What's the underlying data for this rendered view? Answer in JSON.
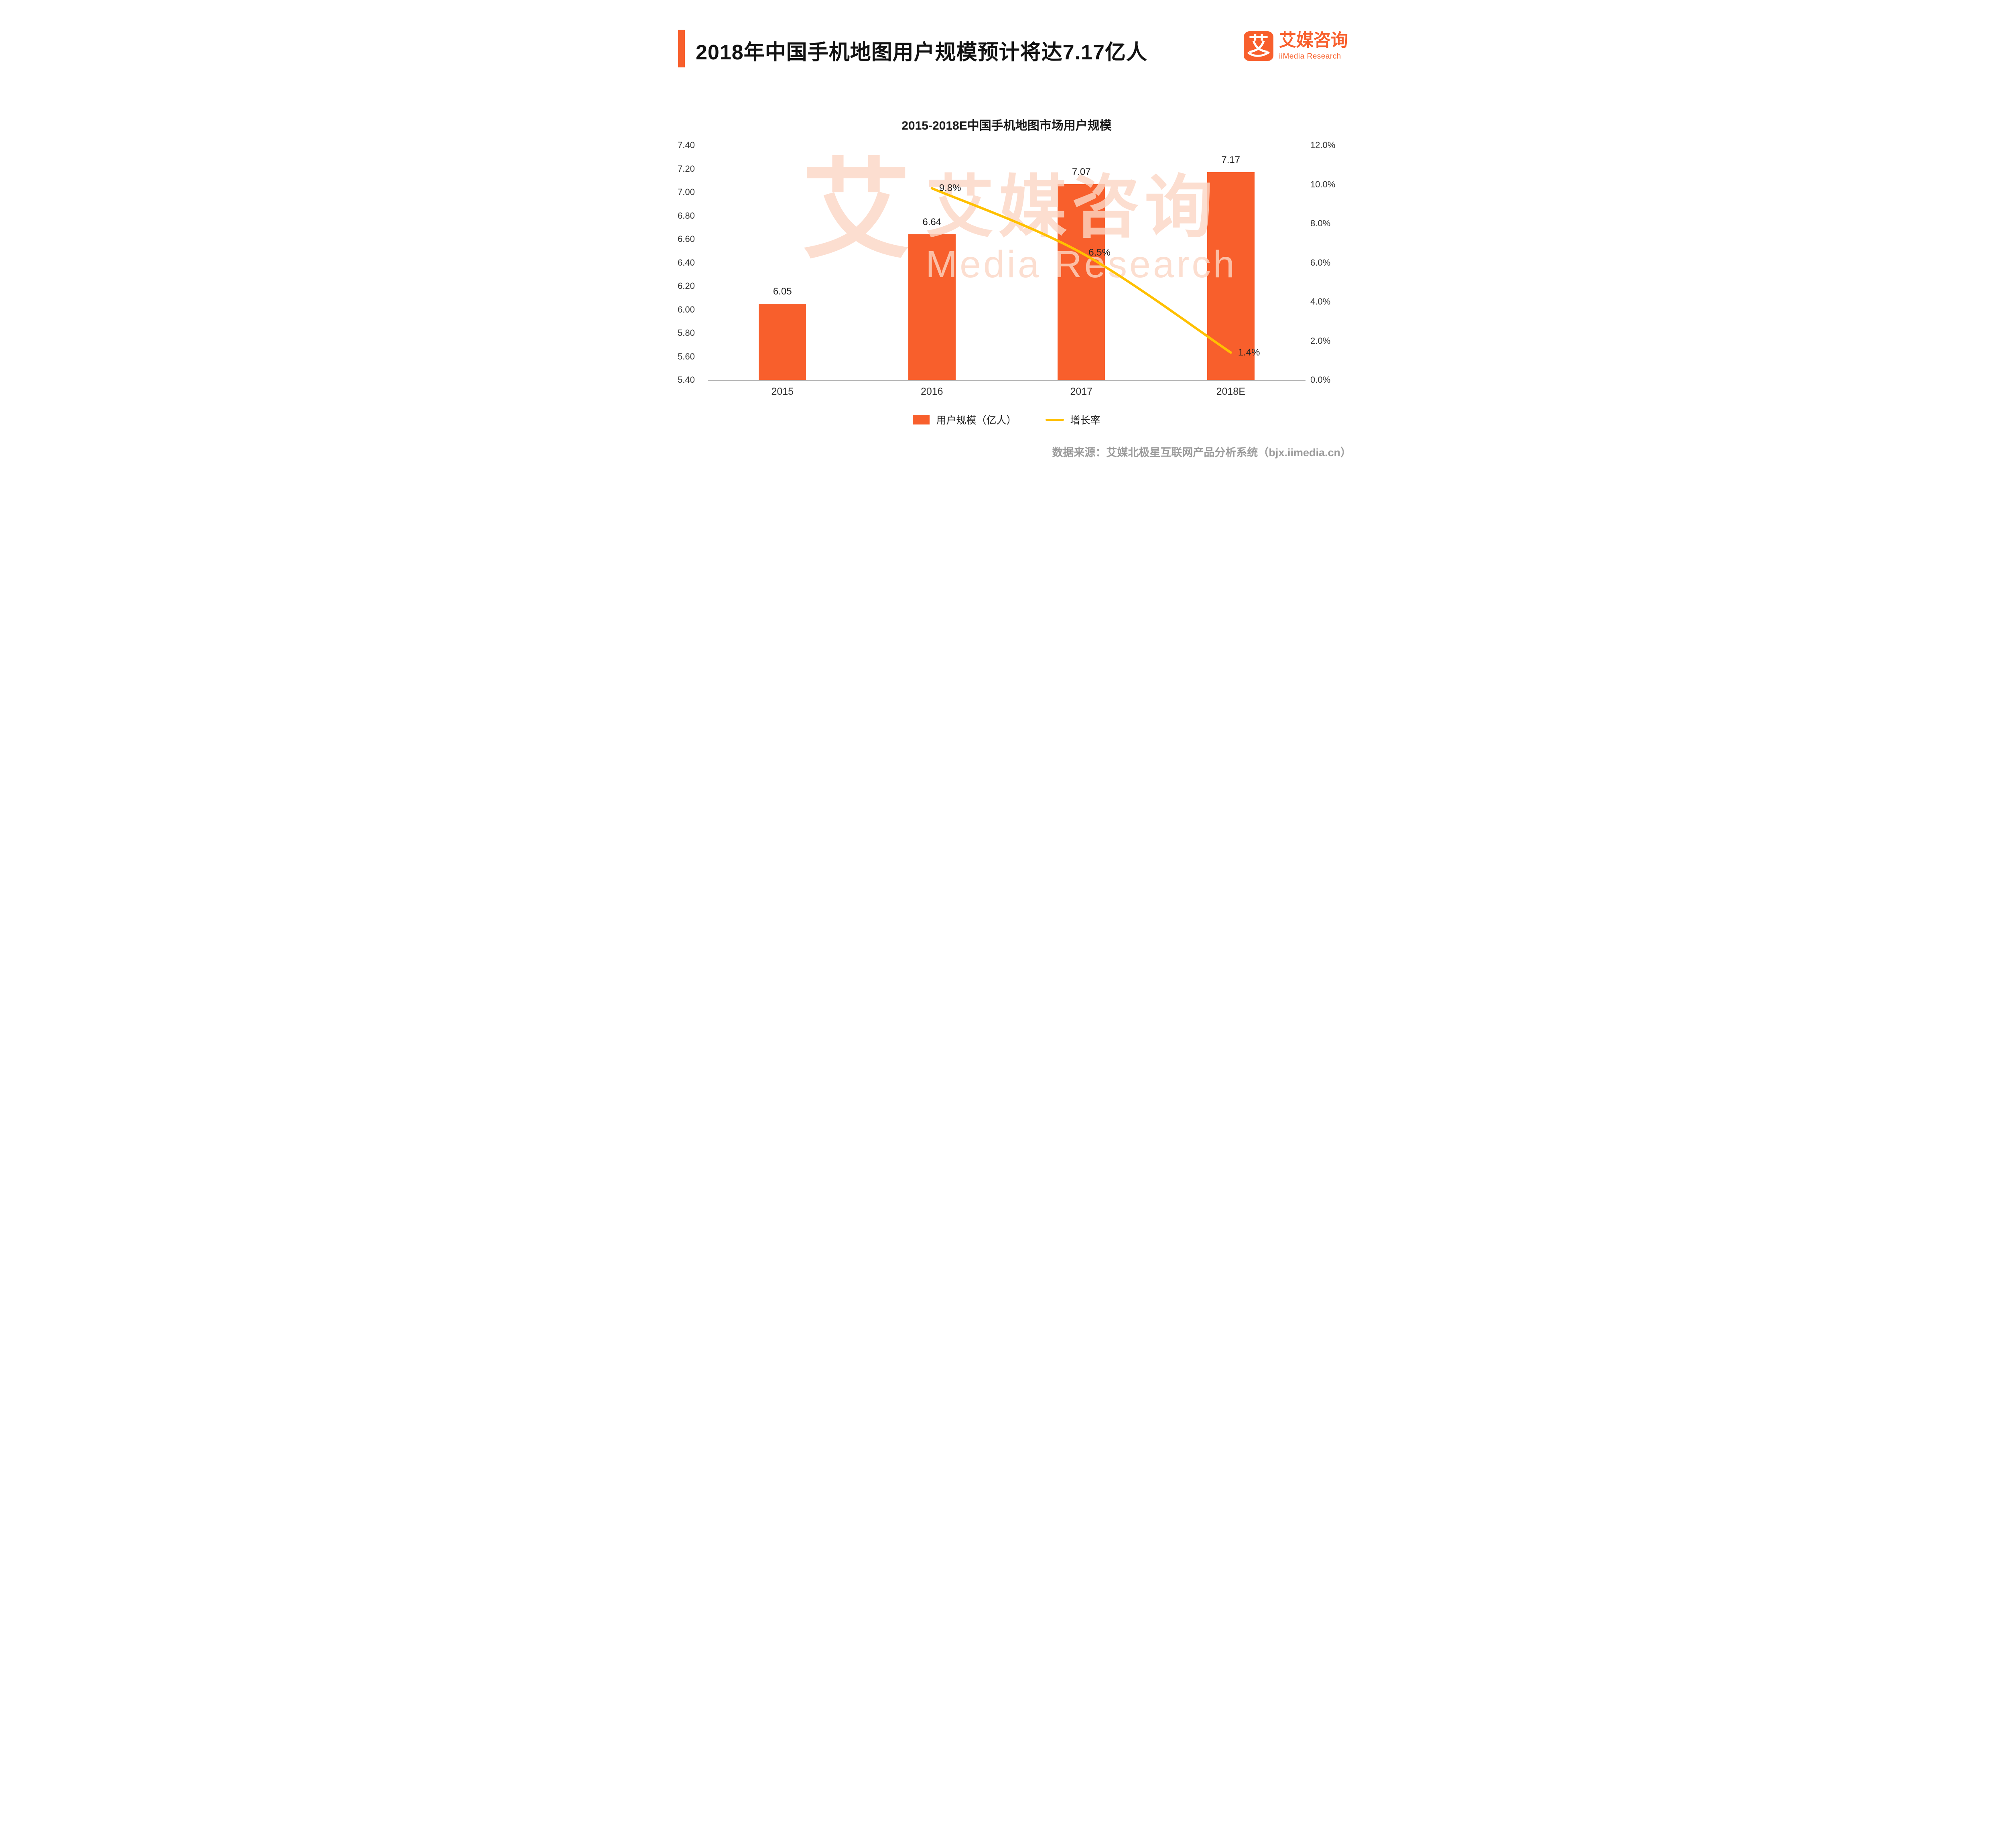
{
  "header": {
    "title": "2018年中国手机地图用户规模预计将达7.17亿人",
    "logo": {
      "glyph": "艾",
      "name_cn": "艾媒咨询",
      "name_en": "iiMedia Research"
    }
  },
  "chart_data": {
    "type": "bar+line",
    "title": "2015-2018E中国手机地图市场用户规模",
    "categories": [
      "2015",
      "2016",
      "2017",
      "2018E"
    ],
    "series": [
      {
        "name": "用户规模（亿人）",
        "type": "bar",
        "axis": "left",
        "color": "#F85F2C",
        "values": [
          6.05,
          6.64,
          7.07,
          7.17
        ],
        "labels": [
          "6.05",
          "6.64",
          "7.07",
          "7.17"
        ]
      },
      {
        "name": "增长率",
        "type": "line",
        "axis": "right",
        "color": "#FFC000",
        "values": [
          null,
          9.8,
          6.5,
          1.4
        ],
        "labels": [
          null,
          "9.8%",
          "6.5%",
          "1.4%"
        ]
      }
    ],
    "left_axis": {
      "min": 5.4,
      "max": 7.4,
      "step": 0.2,
      "tick_labels": [
        "5.40",
        "5.60",
        "5.80",
        "6.00",
        "6.20",
        "6.40",
        "6.60",
        "6.80",
        "7.00",
        "7.20",
        "7.40"
      ]
    },
    "right_axis": {
      "min": 0,
      "max": 12,
      "step": 2,
      "tick_labels": [
        "0.0%",
        "2.0%",
        "4.0%",
        "6.0%",
        "8.0%",
        "10.0%",
        "12.0%"
      ]
    },
    "grid": false,
    "legend_position": "bottom"
  },
  "watermark": {
    "glyph": "艾",
    "text_cn": "艾媒咨询",
    "text_en": "Media Research"
  },
  "footer": {
    "source": "数据来源：艾媒北极星互联网产品分析系统（bjx.iimedia.cn）"
  },
  "colors": {
    "accent": "#F85F2C",
    "bar": "#F85F2C",
    "line": "#FFC000"
  }
}
